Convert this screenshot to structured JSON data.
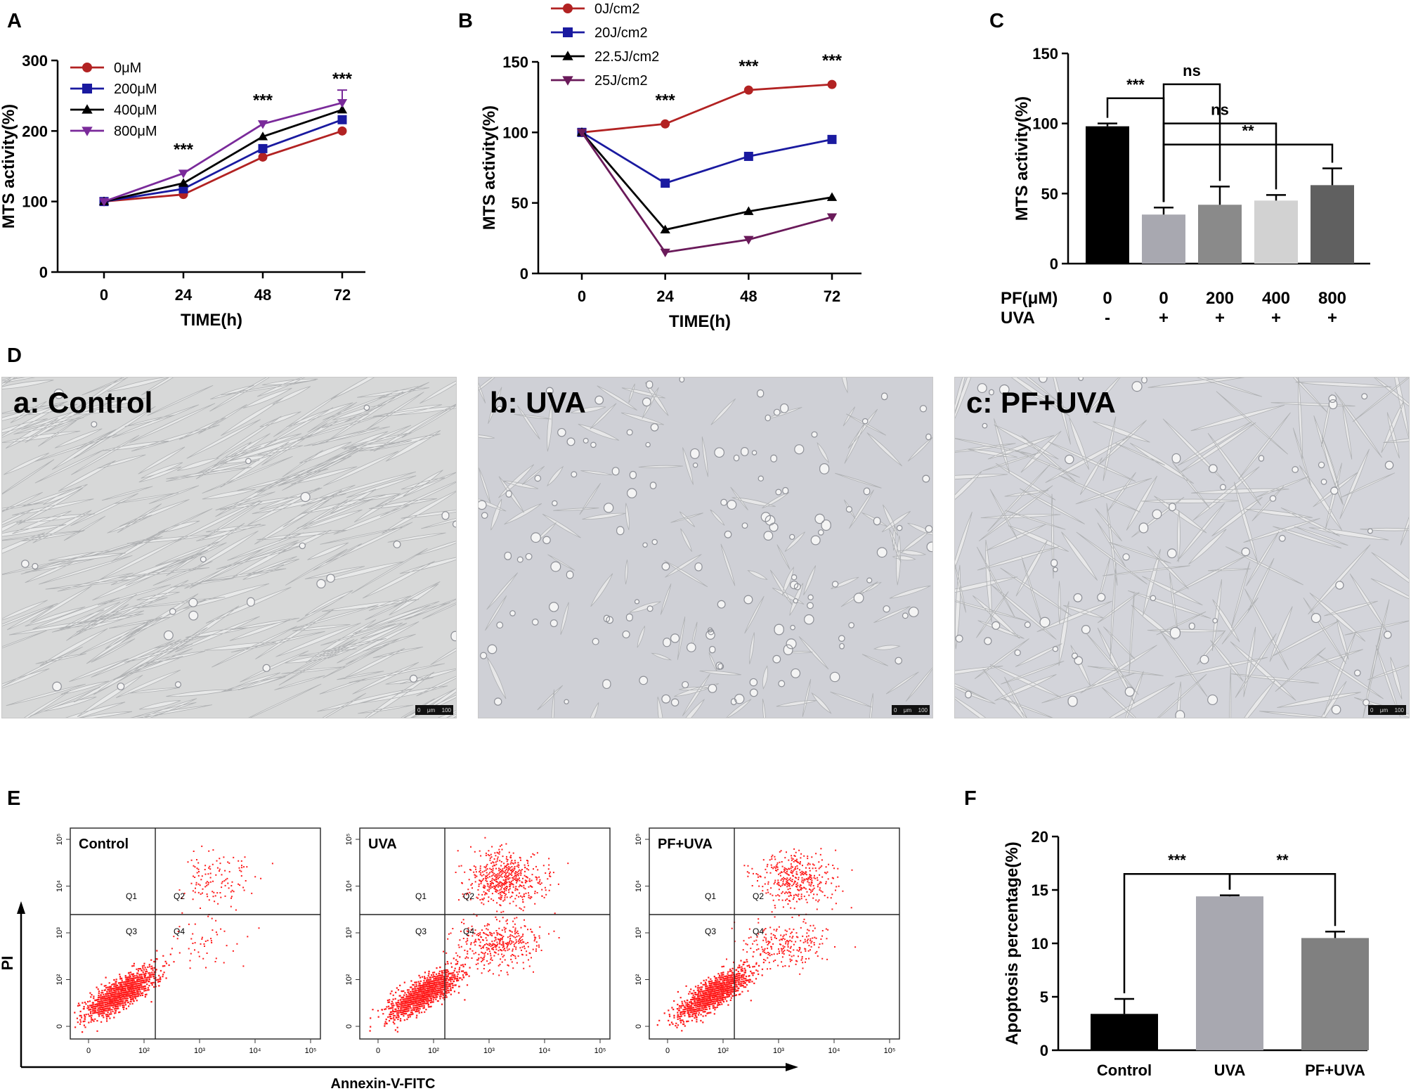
{
  "panel_letters": {
    "A": "A",
    "B": "B",
    "C": "C",
    "D": "D",
    "E": "E",
    "F": "F"
  },
  "colors": {
    "red": "#b22222",
    "blue": "#1a1aa0",
    "black": "#000000",
    "purple": "#7a2a9a",
    "darkpurple": "#6a1a5a",
    "dot": "#ff1a1a"
  },
  "chart_data": [
    {
      "id": "A",
      "type": "line",
      "xlabel": "TIME(h)",
      "ylabel": "MTS activity(%)",
      "x": [
        0,
        24,
        48,
        72
      ],
      "xticks": [
        "0",
        "24",
        "48",
        "72"
      ],
      "ylim": [
        0,
        300
      ],
      "yticks": [
        "0",
        "100",
        "200",
        "300"
      ],
      "series": [
        {
          "name": "0μM",
          "values": [
            100,
            110,
            163,
            200
          ],
          "marker": "circle",
          "color": "#b22222"
        },
        {
          "name": "200μM",
          "values": [
            100,
            118,
            175,
            216
          ],
          "marker": "square",
          "color": "#1a1aa0"
        },
        {
          "name": "400μM",
          "values": [
            100,
            126,
            192,
            230
          ],
          "marker": "triangle",
          "color": "#000000"
        },
        {
          "name": "800μM",
          "values": [
            100,
            140,
            210,
            240
          ],
          "marker": "triangle-down",
          "color": "#7a2a9a"
        }
      ],
      "annotations": [
        {
          "x": 24,
          "text": "***"
        },
        {
          "x": 48,
          "text": "***"
        },
        {
          "x": 72,
          "text": "***"
        }
      ],
      "legend": "top-left"
    },
    {
      "id": "B",
      "type": "line",
      "xlabel": "TIME(h)",
      "ylabel": "MTS activity(%)",
      "x": [
        0,
        24,
        48,
        72
      ],
      "xticks": [
        "0",
        "24",
        "48",
        "72"
      ],
      "ylim": [
        0,
        150
      ],
      "yticks": [
        "0",
        "50",
        "100",
        "150"
      ],
      "series": [
        {
          "name": "0J/cm2",
          "values": [
            100,
            106,
            130,
            134
          ],
          "marker": "circle",
          "color": "#b22222"
        },
        {
          "name": "20J/cm2",
          "values": [
            100,
            64,
            83,
            95
          ],
          "marker": "square",
          "color": "#1a1aa0"
        },
        {
          "name": "22.5J/cm2",
          "values": [
            100,
            31,
            44,
            54
          ],
          "marker": "triangle",
          "color": "#000000"
        },
        {
          "name": "25J/cm2",
          "values": [
            100,
            15,
            24,
            40
          ],
          "marker": "triangle-down",
          "color": "#6a1a5a"
        }
      ],
      "annotations": [
        {
          "x": 24,
          "text": "***"
        },
        {
          "x": 48,
          "text": "***"
        },
        {
          "x": 72,
          "text": "***"
        }
      ],
      "legend": "top-left"
    },
    {
      "id": "C",
      "type": "bar",
      "ylabel": "MTS activity(%)",
      "ylim": [
        0,
        150
      ],
      "yticks": [
        "0",
        "50",
        "100",
        "150"
      ],
      "row_labels": [
        "PF(μM)",
        "UVA"
      ],
      "categories": [
        "0",
        "0",
        "200",
        "400",
        "800"
      ],
      "uva": [
        "-",
        "+",
        "+",
        "+",
        "+"
      ],
      "values": [
        98,
        35,
        42,
        45,
        56
      ],
      "errors": [
        2,
        5,
        13,
        4,
        12
      ],
      "colors": [
        "#000000",
        "#a8a8b0",
        "#8a8a8a",
        "#d2d2d2",
        "#606060"
      ],
      "significance": [
        {
          "from": 0,
          "to": 1,
          "text": "***"
        },
        {
          "from": 1,
          "to": 2,
          "text": "ns"
        },
        {
          "from": 1,
          "to": 3,
          "text": "ns"
        },
        {
          "from": 1,
          "to": 4,
          "text": "**"
        }
      ]
    },
    {
      "id": "F",
      "type": "bar",
      "ylabel": "Apoptosis percentage(%)",
      "ylim": [
        0,
        20
      ],
      "yticks": [
        "0",
        "5",
        "10",
        "15",
        "20"
      ],
      "categories": [
        "Control",
        "UVA",
        "PF+UVA"
      ],
      "values": [
        3.4,
        14.4,
        10.5
      ],
      "errors": [
        1.4,
        0.1,
        0.6
      ],
      "colors": [
        "#000000",
        "#a8a8b0",
        "#808080"
      ],
      "significance": [
        {
          "from": 0,
          "to": 1,
          "text": "***"
        },
        {
          "from": 1,
          "to": 2,
          "text": "**"
        }
      ]
    }
  ],
  "micrographs": [
    {
      "label": "a: Control",
      "scale": [
        "0",
        "μm",
        "100"
      ]
    },
    {
      "label": "b: UVA",
      "scale": [
        "0",
        "μm",
        "100"
      ]
    },
    {
      "label": "c: PF+UVA",
      "scale": [
        "0",
        "μm",
        "100"
      ]
    }
  ],
  "flow": {
    "xlabel": "Annexin-V-FITC",
    "ylabel": "PI",
    "panels": [
      {
        "label": "Control"
      },
      {
        "label": "UVA"
      },
      {
        "label": "PF+UVA"
      }
    ],
    "quadrants": [
      "Q1",
      "Q2",
      "Q3",
      "Q4"
    ],
    "xticks": [
      "0",
      "10²",
      "10³",
      "10⁴",
      "10⁵"
    ],
    "yticks": [
      "0",
      "10²",
      "10³",
      "10⁴",
      "10⁵"
    ]
  }
}
